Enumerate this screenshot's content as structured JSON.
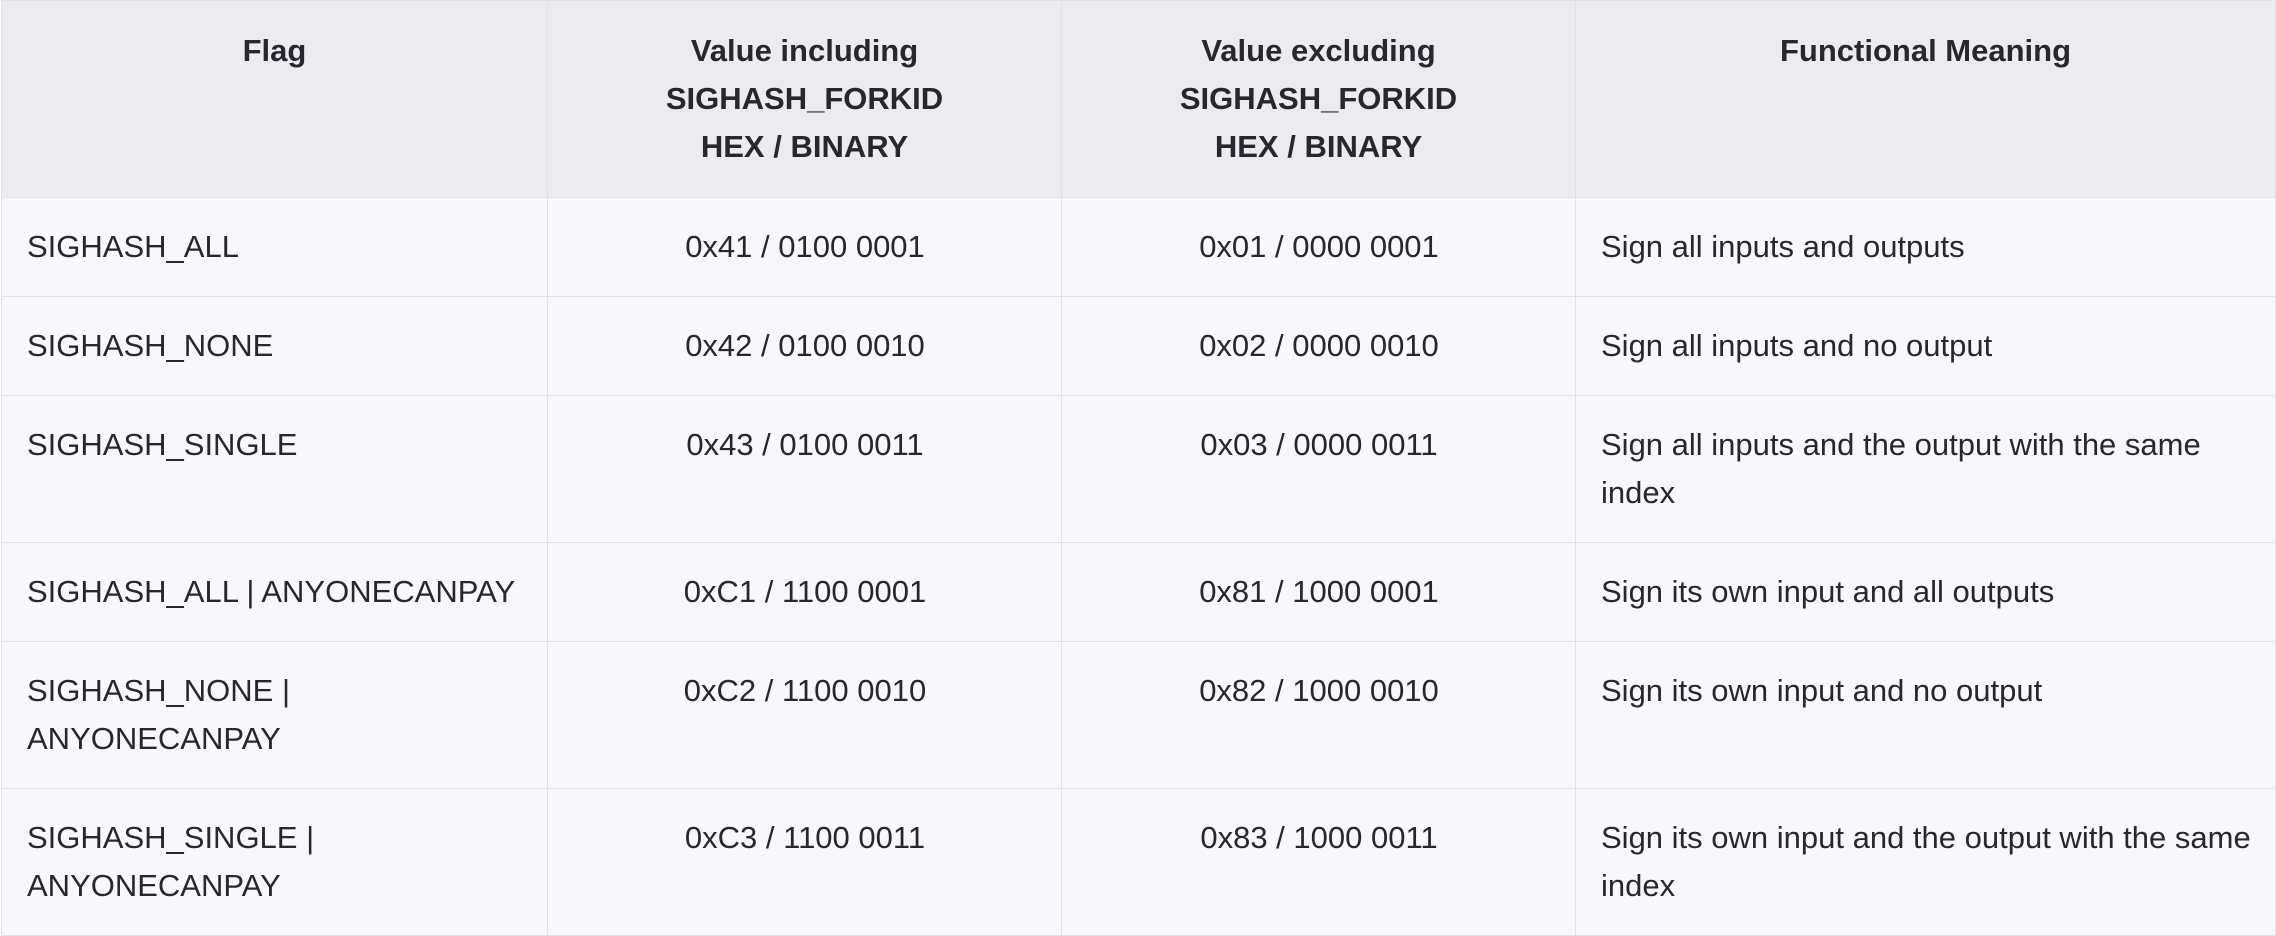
{
  "table": {
    "headers": {
      "flag": "Flag",
      "including": [
        "Value including",
        "SIGHASH_FORKID",
        "HEX / BINARY"
      ],
      "excluding": [
        "Value excluding",
        "SIGHASH_FORKID",
        "HEX / BINARY"
      ],
      "meaning": "Functional Meaning"
    },
    "rows": [
      {
        "flag": "SIGHASH_ALL",
        "including": "0x41 / 0100 0001",
        "excluding": "0x01 / 0000 0001",
        "meaning": "Sign all inputs and outputs"
      },
      {
        "flag": "SIGHASH_NONE",
        "including": "0x42 / 0100 0010",
        "excluding": "0x02 / 0000 0010",
        "meaning": "Sign all inputs and no output"
      },
      {
        "flag": "SIGHASH_SINGLE",
        "including": "0x43 / 0100 0011",
        "excluding": "0x03 / 0000 0011",
        "meaning": "Sign all inputs and the output with the same index"
      },
      {
        "flag": "SIGHASH_ALL | ANYONECANPAY",
        "including": "0xC1 / 1100 0001",
        "excluding": "0x81 / 1000 0001",
        "meaning": "Sign its own input and all outputs"
      },
      {
        "flag": "SIGHASH_NONE | ANYONECANPAY",
        "including": "0xC2 / 1100 0010",
        "excluding": "0x82 / 1000 0010",
        "meaning": "Sign its own input and no output"
      },
      {
        "flag": "SIGHASH_SINGLE | ANYONECANPAY",
        "including": "0xC3 / 1100 0011",
        "excluding": "0x83 / 1000 0011",
        "meaning": "Sign its own input and the output with the same index"
      }
    ],
    "colors": {
      "header_bg": "#ebecef",
      "cell_bg": "#f6f8fa",
      "border": "#dfe2e6",
      "text": "#24292f"
    }
  }
}
